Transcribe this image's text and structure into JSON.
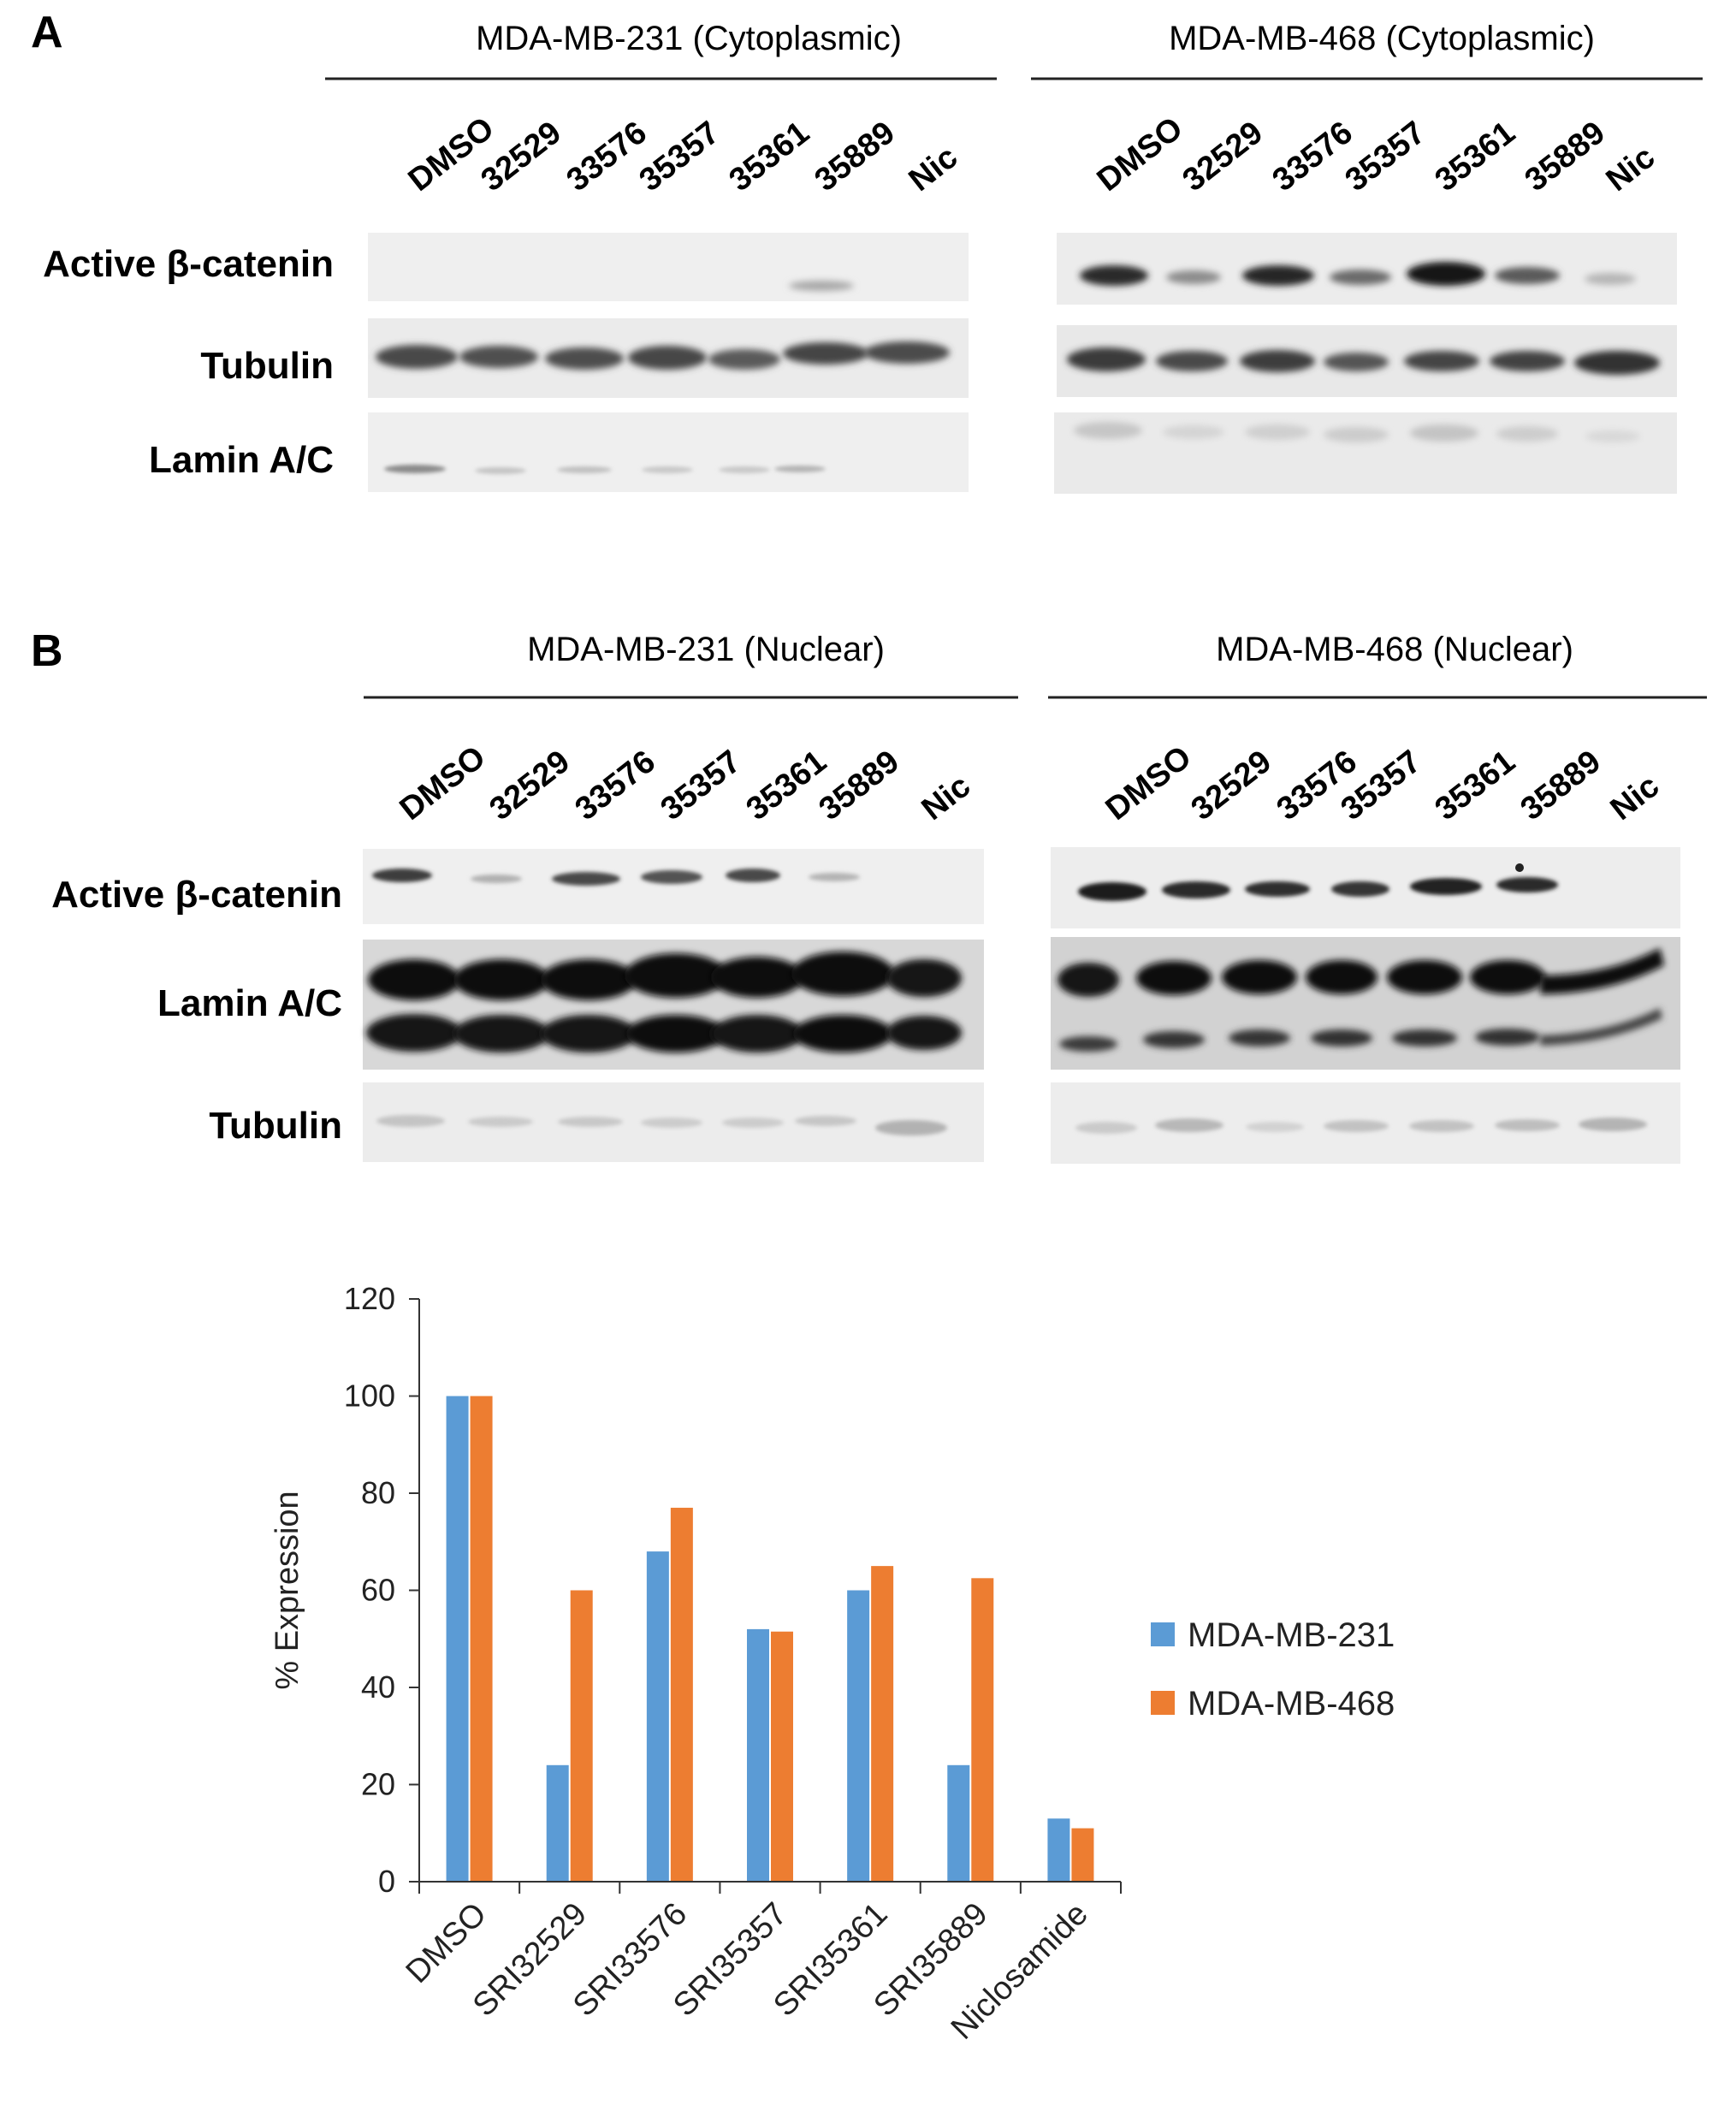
{
  "panel_a": {
    "letter": "A",
    "left": {
      "title": "MDA-MB-231 (Cytoplasmic)",
      "lanes": [
        "DMSO",
        "32529",
        "33576",
        "35357",
        "35361",
        "35889",
        "Nic"
      ],
      "rows": [
        "Active β-catenin",
        "Tubulin",
        "Lamin A/C"
      ]
    },
    "right": {
      "title": "MDA-MB-468 (Cytoplasmic)",
      "lanes": [
        "DMSO",
        "32529",
        "33576",
        "35357",
        "35361",
        "35889",
        "Nic"
      ]
    }
  },
  "panel_b": {
    "letter": "B",
    "left": {
      "title": "MDA-MB-231 (Nuclear)",
      "lanes": [
        "DMSO",
        "32529",
        "33576",
        "35357",
        "35361",
        "35889",
        "Nic"
      ],
      "rows": [
        "Active β-catenin",
        "Lamin A/C",
        "Tubulin"
      ]
    },
    "right": {
      "title": "MDA-MB-468 (Nuclear)",
      "lanes": [
        "DMSO",
        "32529",
        "33576",
        "35357",
        "35361",
        "35889",
        "Nic"
      ]
    }
  },
  "colors": {
    "series1": "#5b9bd5",
    "series2": "#ed7d31"
  },
  "chart_data": {
    "type": "bar",
    "categories": [
      "DMSO",
      "SRI32529",
      "SRI33576",
      "SRI35357",
      "SRI35361",
      "SRI35889",
      "Niclosamide"
    ],
    "series": [
      {
        "name": "MDA-MB-231",
        "values": [
          100,
          24,
          68,
          52,
          60,
          24,
          13
        ]
      },
      {
        "name": "MDA-MB-468",
        "values": [
          100,
          60,
          77,
          51.5,
          65,
          62.5,
          11
        ]
      }
    ],
    "xlabel": "",
    "ylabel": "% Expression",
    "ylim": [
      0,
      120
    ],
    "yticks": [
      0,
      20,
      40,
      60,
      80,
      100,
      120
    ],
    "grid": false,
    "legend": "right"
  }
}
